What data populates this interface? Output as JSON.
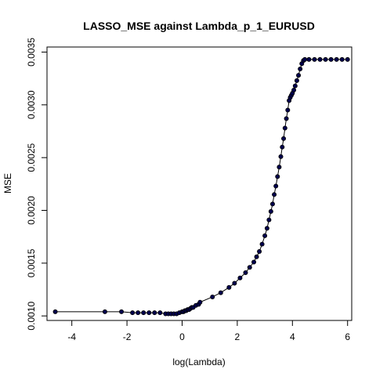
{
  "chart_data": {
    "type": "line",
    "title": "LASSO_MSE against Lambda_p_1_EURUSD",
    "xlabel": "log(Lambda)",
    "ylabel": "MSE",
    "xlim": [
      -4.9,
      6.15
    ],
    "ylim": [
      0.000957,
      0.003548
    ],
    "x_ticks": [
      -4,
      -2,
      0,
      2,
      4,
      6
    ],
    "x_tick_labels": [
      "-4",
      "-2",
      "0",
      "2",
      "4",
      "6"
    ],
    "y_ticks": [
      0.001,
      0.0015,
      0.002,
      0.0025,
      0.003,
      0.0035
    ],
    "y_tick_labels": [
      "0.0010",
      "0.0015",
      "0.0020",
      "0.0025",
      "0.0030",
      "0.0035"
    ],
    "grid": false,
    "line_color": "#000000",
    "point_fill": "#00004d",
    "series": [
      {
        "x": [
          -4.6,
          -2.8,
          -2.2,
          -1.8,
          -1.6,
          -1.4,
          -1.2,
          -1.0,
          -0.8,
          -0.6,
          -0.5,
          -0.4,
          -0.3,
          -0.2,
          -0.1,
          0.0,
          0.05,
          0.1,
          0.15,
          0.2,
          0.25,
          0.3,
          0.35,
          0.4,
          0.5,
          0.6,
          0.65,
          1.1,
          1.4,
          1.7,
          1.9,
          2.1,
          2.3,
          2.45,
          2.6,
          2.7,
          2.8,
          2.9,
          3.0,
          3.08,
          3.15,
          3.22,
          3.28,
          3.34,
          3.4,
          3.46,
          3.52,
          3.58,
          3.63,
          3.68,
          3.73,
          3.78,
          3.83,
          3.88,
          3.92,
          3.96,
          4.0,
          4.05,
          4.1,
          4.16,
          4.22,
          4.28,
          4.34,
          4.4,
          4.45,
          4.6,
          4.8,
          5.0,
          5.2,
          5.4,
          5.6,
          5.8,
          6.0
        ],
        "y": [
          0.00104,
          0.00104,
          0.00104,
          0.00103,
          0.00103,
          0.00103,
          0.00103,
          0.00103,
          0.00103,
          0.00102,
          0.00102,
          0.00102,
          0.00102,
          0.00102,
          0.00103,
          0.00104,
          0.00104,
          0.00105,
          0.00105,
          0.00106,
          0.00106,
          0.00107,
          0.00108,
          0.00108,
          0.0011,
          0.00111,
          0.00113,
          0.00118,
          0.00122,
          0.00127,
          0.00131,
          0.00136,
          0.00141,
          0.00146,
          0.00151,
          0.00156,
          0.00161,
          0.00168,
          0.00176,
          0.00183,
          0.00191,
          0.00199,
          0.00206,
          0.00215,
          0.00223,
          0.00232,
          0.00241,
          0.00251,
          0.0026,
          0.00268,
          0.00278,
          0.00287,
          0.00295,
          0.00304,
          0.00307,
          0.00309,
          0.00311,
          0.00314,
          0.00318,
          0.00323,
          0.00328,
          0.00334,
          0.00339,
          0.00342,
          0.00343,
          0.00343,
          0.00343,
          0.00343,
          0.00343,
          0.00343,
          0.00343,
          0.00343,
          0.00343
        ]
      }
    ]
  }
}
